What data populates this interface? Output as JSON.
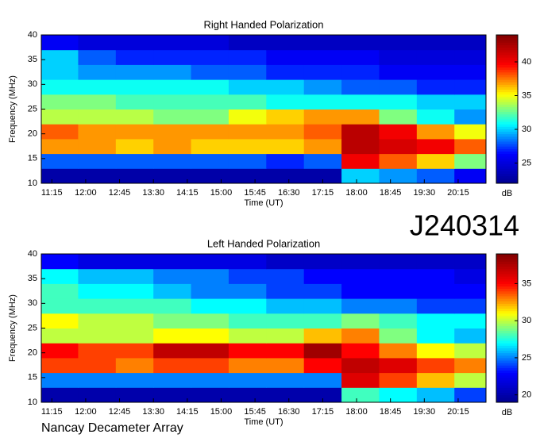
{
  "label": "J240314",
  "footer": "Nancay Decameter Array",
  "chart_data": [
    {
      "type": "heatmap",
      "title": "Right Handed Polarization",
      "xlabel": "Time (UT)",
      "ylabel": "Frequency (MHz)",
      "zlabel": "dB",
      "x": [
        685,
        735,
        785,
        835,
        885,
        935,
        985,
        1035,
        1085,
        1135,
        1185,
        1235
      ],
      "y": [
        11.5,
        14.5,
        17.5,
        20.5,
        23.5,
        26.5,
        29.5,
        32.5,
        35.5,
        38.5
      ],
      "z": [
        [
          23,
          23,
          23,
          23,
          23,
          23,
          23,
          23,
          30,
          29,
          28,
          26
        ],
        [
          28,
          28,
          28,
          28,
          28,
          28,
          27,
          28,
          40,
          38,
          36,
          33
        ],
        [
          37,
          37,
          36,
          37,
          36,
          36,
          36,
          37,
          42,
          41,
          40,
          38
        ],
        [
          38,
          37,
          37,
          37,
          37,
          37,
          37,
          38,
          42,
          40,
          37,
          35
        ],
        [
          34,
          34,
          34,
          33,
          33,
          35,
          36,
          37,
          37,
          33,
          31,
          29
        ],
        [
          33,
          33,
          32,
          32,
          32,
          32,
          31,
          31,
          31,
          31,
          30,
          30
        ],
        [
          31,
          31,
          31,
          31,
          31,
          30,
          30,
          29,
          28,
          28,
          27,
          27
        ],
        [
          30,
          29,
          29,
          29,
          28,
          28,
          27,
          27,
          27,
          26,
          26,
          26
        ],
        [
          30,
          28,
          27,
          27,
          27,
          27,
          26,
          26,
          26,
          25,
          25,
          25
        ],
        [
          26,
          25,
          25,
          25,
          25,
          24,
          24,
          24,
          24,
          24,
          24,
          24
        ]
      ],
      "xlim": [
        661,
        1252
      ],
      "xticks": [
        {
          "value": 675,
          "label": "11:15"
        },
        {
          "value": 720,
          "label": "12:00"
        },
        {
          "value": 765,
          "label": "12:45"
        },
        {
          "value": 810,
          "label": "13:30"
        },
        {
          "value": 855,
          "label": "14:15"
        },
        {
          "value": 900,
          "label": "15:00"
        },
        {
          "value": 945,
          "label": "15:45"
        },
        {
          "value": 990,
          "label": "16:30"
        },
        {
          "value": 1035,
          "label": "17:15"
        },
        {
          "value": 1080,
          "label": "18:00"
        },
        {
          "value": 1125,
          "label": "18:45"
        },
        {
          "value": 1170,
          "label": "19:30"
        },
        {
          "value": 1215,
          "label": "20:15"
        }
      ],
      "ylim": [
        10,
        40
      ],
      "yticks": [
        10,
        15,
        20,
        25,
        30,
        35,
        40
      ],
      "zlim": [
        22,
        44
      ],
      "zticks": [
        25,
        30,
        35,
        40
      ],
      "colormap": [
        "#00008f",
        "#0000ff",
        "#00ffff",
        "#ffff00",
        "#ff0000",
        "#800000"
      ]
    },
    {
      "type": "heatmap",
      "title": "Left Handed Polarization",
      "xlabel": "Time (UT)",
      "ylabel": "Frequency (MHz)",
      "zlabel": "dB",
      "x": [
        685,
        735,
        785,
        835,
        885,
        935,
        985,
        1035,
        1085,
        1135,
        1185,
        1235
      ],
      "y": [
        11.5,
        14.5,
        17.5,
        20.5,
        23.5,
        26.5,
        29.5,
        32.5,
        35.5,
        38.5
      ],
      "z": [
        [
          20,
          20,
          20,
          20,
          20,
          20,
          20,
          20,
          28,
          27,
          26,
          24
        ],
        [
          25,
          25,
          25,
          25,
          25,
          25,
          25,
          25,
          36,
          34,
          32,
          30
        ],
        [
          34,
          34,
          33,
          34,
          34,
          33,
          33,
          35,
          37,
          36,
          34,
          33
        ],
        [
          35,
          34,
          34,
          37,
          37,
          35,
          35,
          38,
          35,
          33,
          31,
          30
        ],
        [
          30,
          30,
          30,
          31,
          31,
          30,
          30,
          32,
          33,
          29,
          27,
          26
        ],
        [
          31,
          30,
          30,
          29,
          29,
          28,
          28,
          28,
          29,
          28,
          27,
          27
        ],
        [
          28,
          28,
          28,
          28,
          27,
          27,
          26,
          26,
          25,
          25,
          24,
          24
        ],
        [
          28,
          27,
          27,
          26,
          25,
          25,
          24,
          24,
          23,
          23,
          23,
          23
        ],
        [
          27,
          26,
          26,
          25,
          25,
          24,
          24,
          23,
          23,
          23,
          23,
          22
        ],
        [
          23,
          22,
          22,
          22,
          22,
          22,
          21,
          21,
          21,
          21,
          21,
          21
        ]
      ],
      "xlim": [
        661,
        1252
      ],
      "xticks": [
        {
          "value": 675,
          "label": "11:15"
        },
        {
          "value": 720,
          "label": "12:00"
        },
        {
          "value": 765,
          "label": "12:45"
        },
        {
          "value": 810,
          "label": "13:30"
        },
        {
          "value": 855,
          "label": "14:15"
        },
        {
          "value": 900,
          "label": "15:00"
        },
        {
          "value": 945,
          "label": "15:45"
        },
        {
          "value": 990,
          "label": "16:30"
        },
        {
          "value": 1035,
          "label": "17:15"
        },
        {
          "value": 1080,
          "label": "18:00"
        },
        {
          "value": 1125,
          "label": "18:45"
        },
        {
          "value": 1170,
          "label": "19:30"
        },
        {
          "value": 1215,
          "label": "20:15"
        }
      ],
      "ylim": [
        10,
        40
      ],
      "yticks": [
        10,
        15,
        20,
        25,
        30,
        35,
        40
      ],
      "zlim": [
        19,
        39
      ],
      "zticks": [
        20,
        25,
        30,
        35
      ],
      "colormap": [
        "#00008f",
        "#0000ff",
        "#00ffff",
        "#ffff00",
        "#ff0000",
        "#800000"
      ]
    }
  ]
}
